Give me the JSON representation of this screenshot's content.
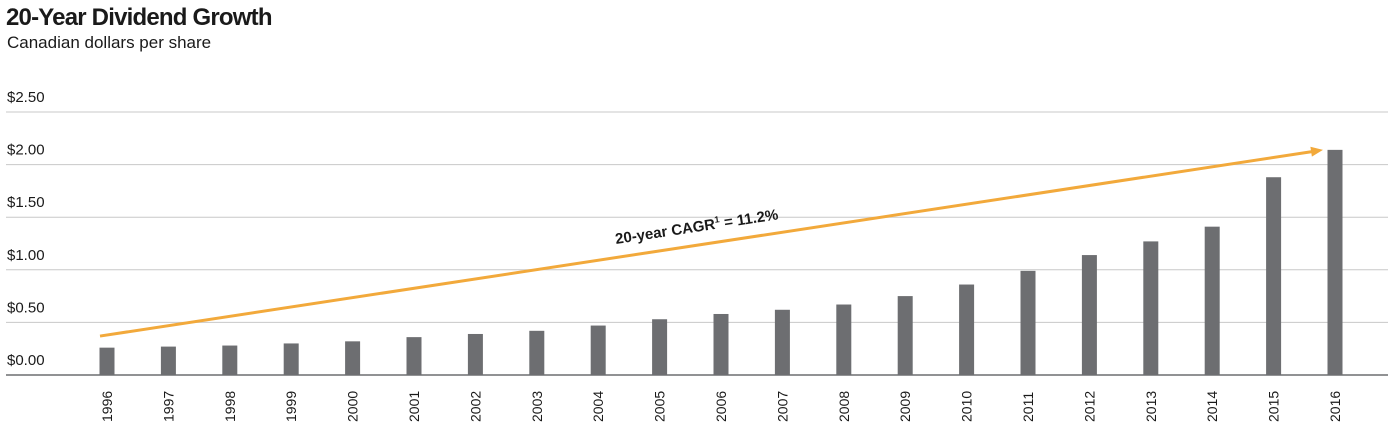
{
  "chart_data": {
    "type": "bar",
    "title": "20-Year Dividend Growth",
    "subtitle": "Canadian dollars per share",
    "xlabel": "",
    "ylabel": "",
    "categories": [
      "1996",
      "1997",
      "1998",
      "1999",
      "2000",
      "2001",
      "2002",
      "2003",
      "2004",
      "2005",
      "2006",
      "2007",
      "2008",
      "2009",
      "2010",
      "2011",
      "2012",
      "2013",
      "2014",
      "2015",
      "2016"
    ],
    "values": [
      0.26,
      0.27,
      0.28,
      0.3,
      0.32,
      0.36,
      0.39,
      0.42,
      0.47,
      0.53,
      0.58,
      0.62,
      0.67,
      0.75,
      0.86,
      0.99,
      1.14,
      1.27,
      1.41,
      1.88,
      2.14
    ],
    "ylim": [
      0,
      2.5
    ],
    "yticks": [
      "$0.00",
      "$0.50",
      "$1.00",
      "$1.50",
      "$2.00",
      "$2.50"
    ],
    "ytick_values": [
      0,
      0.5,
      1.0,
      1.5,
      2.0,
      2.5
    ],
    "grid": true,
    "annotation": {
      "text": "20-year CAGR",
      "superscript": "1",
      "value_text": " = 11.2%",
      "trend_start": [
        "1996",
        0.37
      ],
      "trend_end": [
        "2016",
        2.14
      ]
    },
    "colors": {
      "bar": "#6d6e71",
      "trend": "#f2a93b",
      "grid": "#c8c8c8",
      "axis": "#6d6e71"
    }
  }
}
